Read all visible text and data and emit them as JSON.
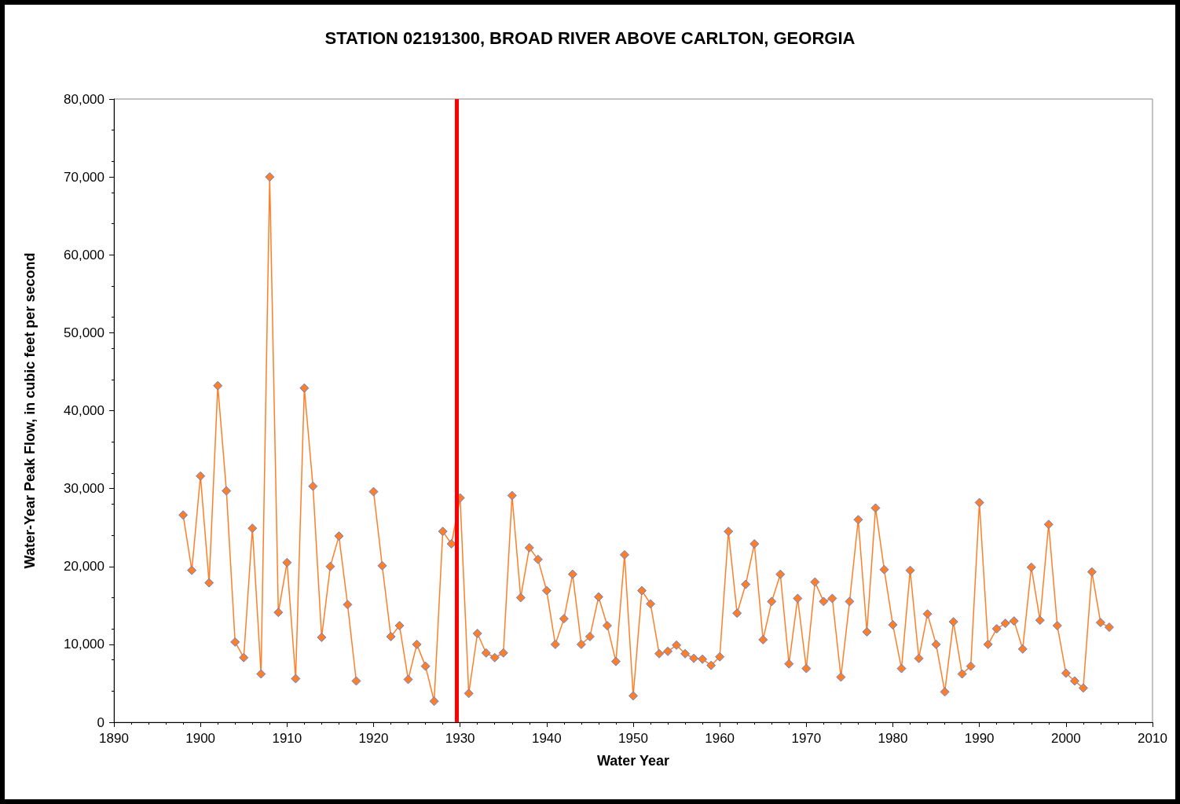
{
  "chart_data": {
    "type": "line",
    "title": "STATION 02191300, BROAD RIVER ABOVE CARLTON, GEORGIA",
    "xlabel": "Water Year",
    "ylabel": "Water-Year Peak Flow, in cubic feet per second",
    "x": [
      1898,
      1899,
      1900,
      1901,
      1902,
      1903,
      1904,
      1905,
      1906,
      1907,
      1908,
      1909,
      1910,
      1911,
      1912,
      1913,
      1914,
      1915,
      1916,
      1917,
      1918,
      1919,
      1920,
      1921,
      1922,
      1923,
      1924,
      1925,
      1926,
      1927,
      1928,
      1929,
      1930,
      1931,
      1932,
      1933,
      1934,
      1935,
      1936,
      1937,
      1938,
      1939,
      1940,
      1941,
      1942,
      1943,
      1944,
      1945,
      1946,
      1947,
      1948,
      1949,
      1950,
      1951,
      1952,
      1953,
      1954,
      1955,
      1956,
      1957,
      1958,
      1959,
      1960,
      1961,
      1962,
      1963,
      1964,
      1965,
      1966,
      1967,
      1968,
      1969,
      1970,
      1971,
      1972,
      1973,
      1974,
      1975,
      1976,
      1977,
      1978,
      1979,
      1980,
      1981,
      1982,
      1983,
      1984,
      1985,
      1986,
      1987,
      1988,
      1989,
      1990,
      1991,
      1992,
      1993,
      1994,
      1995,
      1996,
      1997,
      1998,
      1999,
      2000,
      2001,
      2002,
      2003,
      2004,
      2005
    ],
    "series": [
      {
        "color": "#ff7f27",
        "values": [
          26600,
          19500,
          31600,
          17900,
          43200,
          29700,
          10300,
          8300,
          24900,
          6200,
          70000,
          14100,
          20500,
          5600,
          42900,
          30300,
          10900,
          20000,
          23900,
          15100,
          5300,
          null,
          29600,
          20100,
          11000,
          12400,
          5500,
          10000,
          7200,
          2700,
          24500,
          22900,
          28800,
          3700,
          11400,
          8900,
          8300,
          8900,
          29100,
          16000,
          22400,
          20900,
          16900,
          10000,
          13300,
          19000,
          10000,
          11000,
          16100,
          12400,
          7800,
          21500,
          3400,
          16900,
          15200,
          8800,
          9100,
          9900,
          8800,
          8200,
          8100,
          7300,
          8400,
          24500,
          14000,
          17700,
          22900,
          10600,
          15500,
          19000,
          7500,
          15900,
          6900,
          18000,
          15500,
          15900,
          5800,
          15500,
          26000,
          11600,
          27500,
          19600,
          12500,
          6900,
          19500,
          8200,
          13900,
          10000,
          3900,
          12900,
          6200,
          7200,
          28200,
          10000,
          12000,
          12700,
          13000,
          9400,
          19900,
          13100,
          25400,
          12400,
          6300,
          5300,
          4400,
          19300,
          12800,
          12200
        ]
      }
    ],
    "xlim": [
      1890,
      2010
    ],
    "xticks": [
      1890,
      1900,
      1910,
      1920,
      1930,
      1940,
      1950,
      1960,
      1970,
      1980,
      1990,
      2000,
      2010
    ],
    "ylim": [
      0,
      80000
    ],
    "yticks": [
      0,
      {
        "value": 10000,
        "label": "10,000"
      },
      {
        "value": 20000,
        "label": "20,000"
      },
      {
        "value": 30000,
        "label": "30,000"
      },
      {
        "value": 40000,
        "label": "40,000"
      },
      {
        "value": 50000,
        "label": "50,000"
      },
      {
        "value": 60000,
        "label": "60,000"
      },
      {
        "value": 70000,
        "label": "70,000"
      },
      {
        "value": 80000,
        "label": "80,000"
      }
    ],
    "grid": false,
    "marker": "diamond",
    "line_style": "solid",
    "ref_lines": [
      {
        "axis": "x",
        "value": 1929.6,
        "color": "#ff0000",
        "line_style": "solid"
      }
    ]
  }
}
